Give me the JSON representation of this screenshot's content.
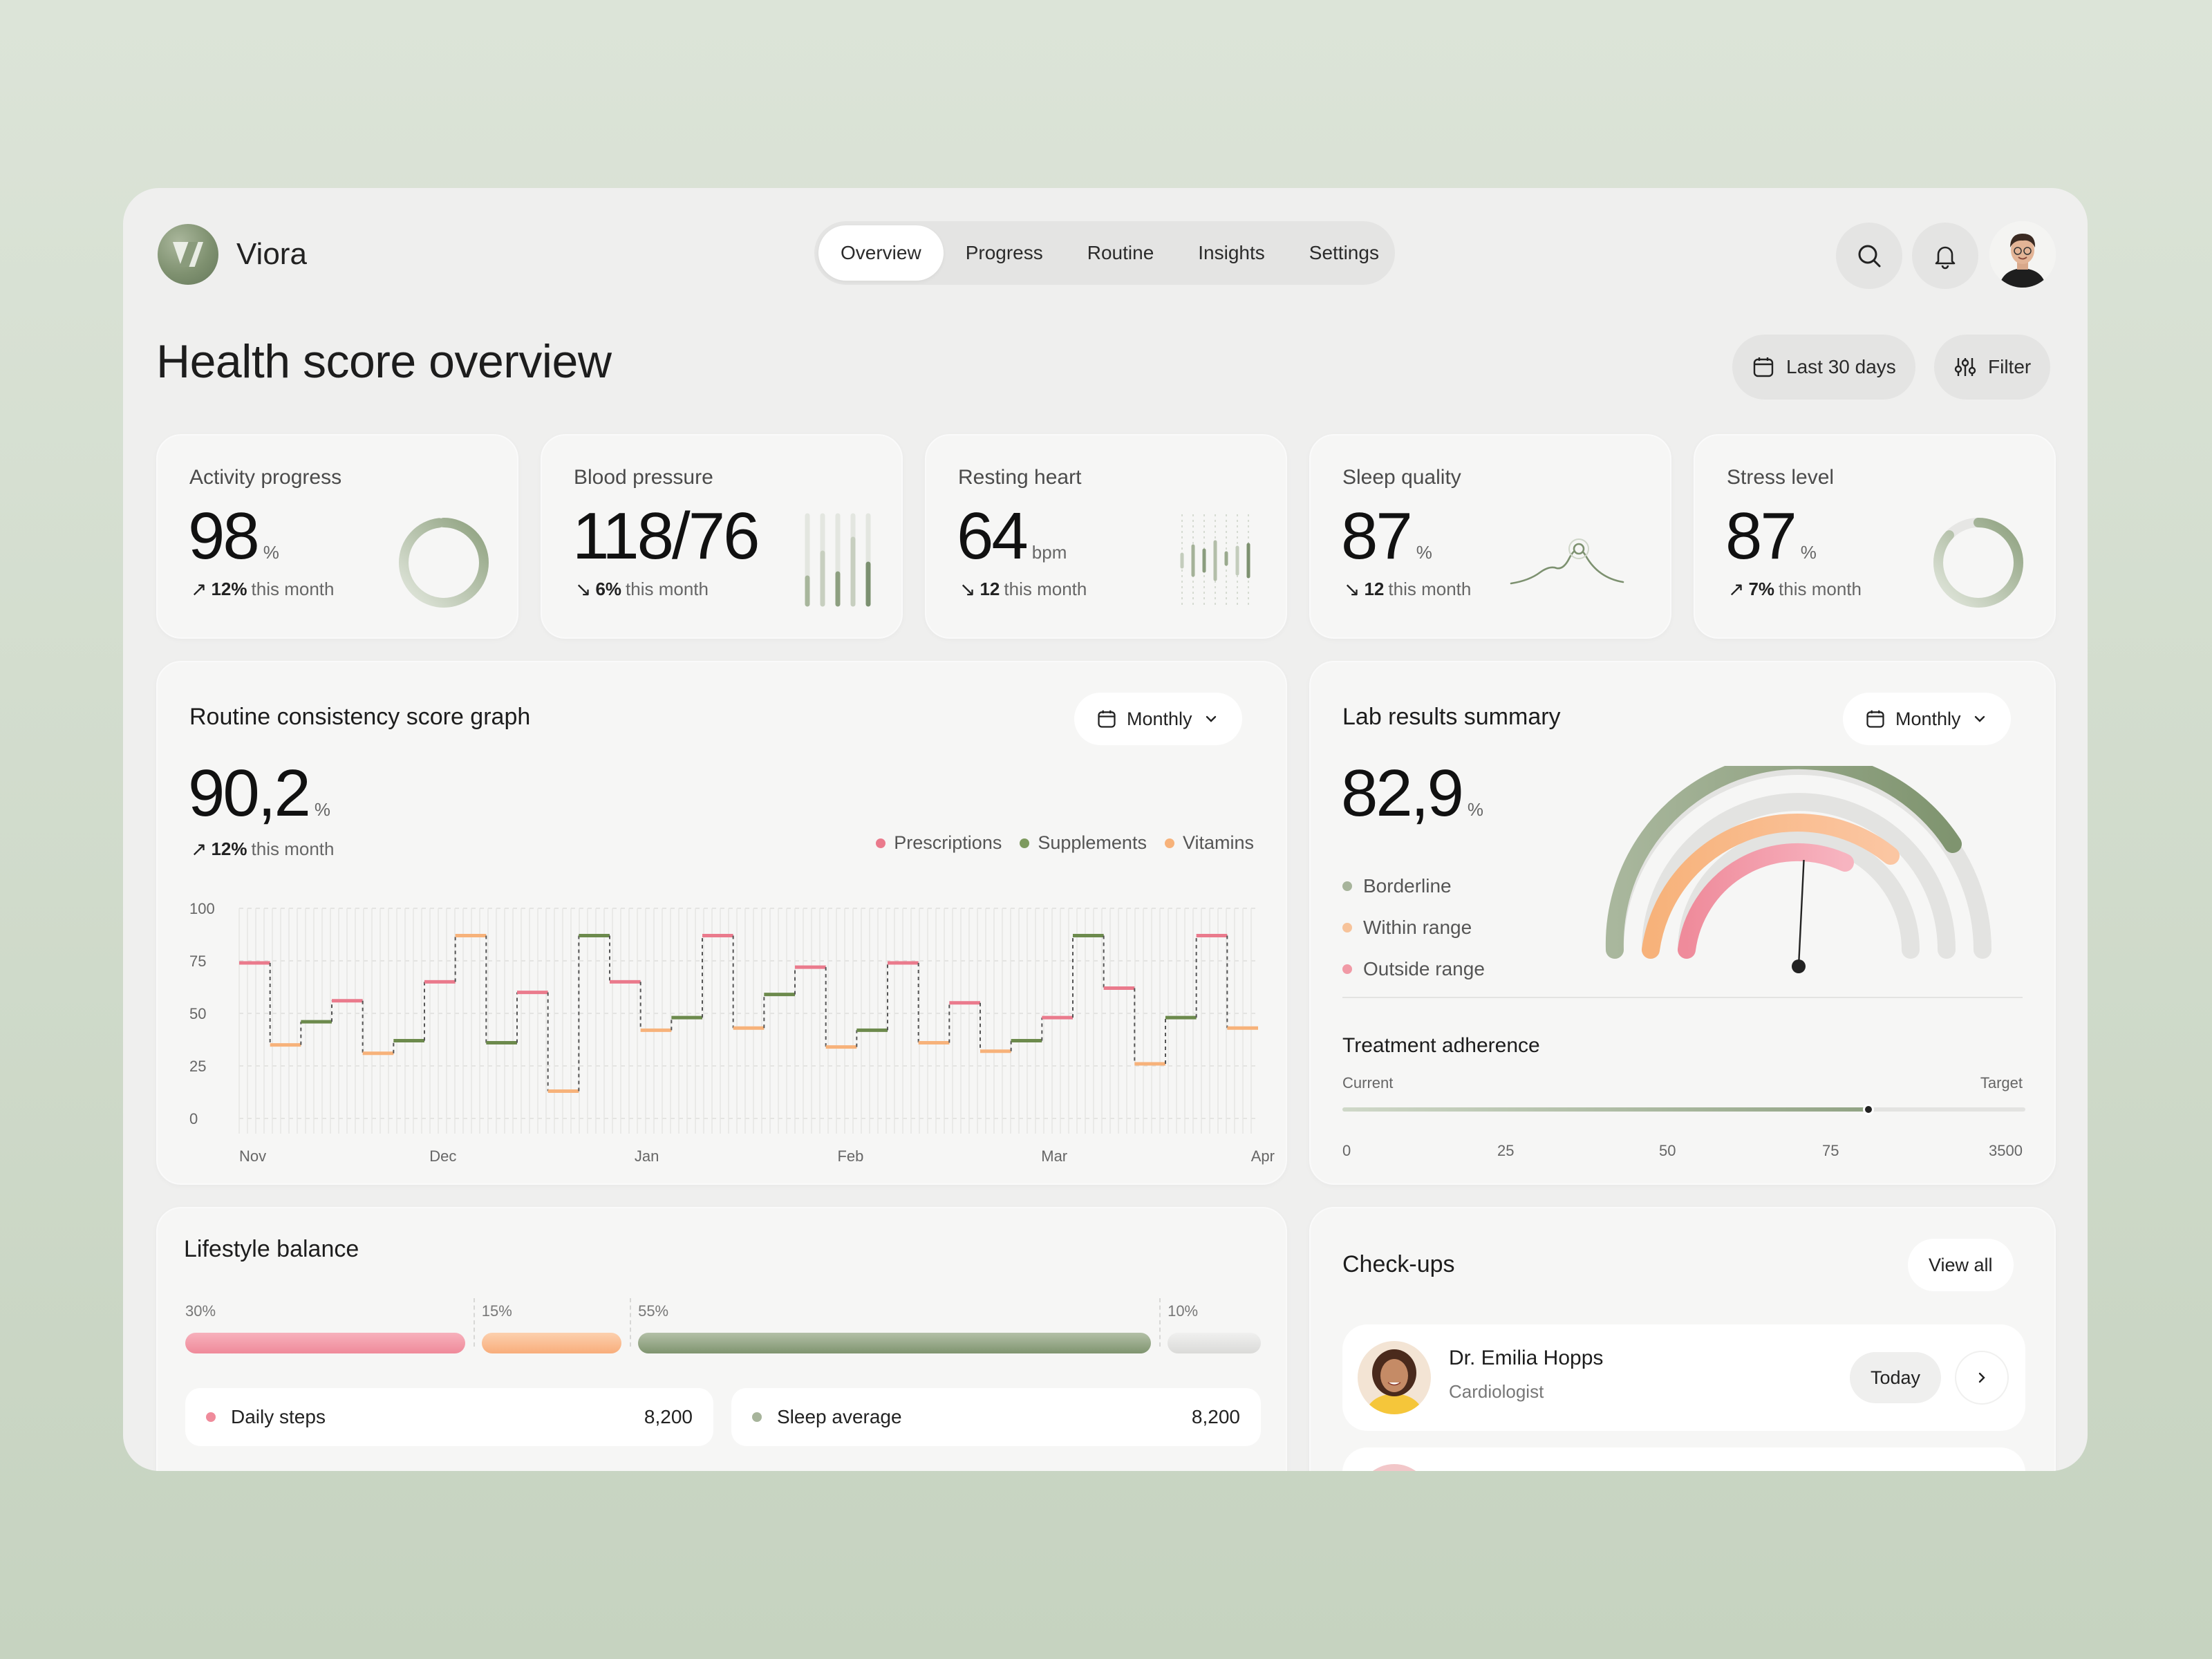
{
  "app": {
    "name": "Viora"
  },
  "nav": {
    "tabs": [
      "Overview",
      "Progress",
      "Routine",
      "Insights",
      "Settings"
    ],
    "active": "Overview"
  },
  "header": {
    "title": "Health score overview",
    "date_range": "Last 30 days",
    "filter_label": "Filter"
  },
  "colors": {
    "accent_green": "#7d9270",
    "pink": "#ea7a8c",
    "orange": "#f7b27a",
    "olive": "#6c8a4c"
  },
  "stats": [
    {
      "label": "Activity progress",
      "value": "98",
      "unit": "%",
      "arrow": "↗",
      "change": "12%",
      "change_text": "this month",
      "progress": 0.98
    },
    {
      "label": "Blood pressure",
      "value": "118/76",
      "unit": "",
      "arrow": "↘",
      "change": "6%",
      "change_text": "this month"
    },
    {
      "label": "Resting heart",
      "value": "64",
      "unit": "bpm",
      "arrow": "↘",
      "change": "12",
      "change_text": "this month"
    },
    {
      "label": "Sleep quality",
      "value": "87",
      "unit": "%",
      "arrow": "↘",
      "change": "12",
      "change_text": "this month"
    },
    {
      "label": "Stress level",
      "value": "87",
      "unit": "%",
      "arrow": "↗",
      "change": "7%",
      "change_text": "this month",
      "progress": 0.87
    }
  ],
  "routine": {
    "title": "Routine consistency score graph",
    "period": "Monthly",
    "value": "90,2",
    "unit": "%",
    "arrow": "↗",
    "change": "12%",
    "change_text": "this month",
    "legend": [
      "Prescriptions",
      "Supplements",
      "Vitamins"
    ]
  },
  "chart_data": {
    "type": "line",
    "xlabel": "",
    "ylabel": "",
    "ylim": [
      0,
      100
    ],
    "yticks": [
      100,
      75,
      50,
      25,
      0
    ],
    "xticks": [
      "Nov",
      "Dec",
      "Jan",
      "Feb",
      "Mar",
      "Apr"
    ],
    "series_names": [
      "Prescriptions",
      "Supplements",
      "Vitamins"
    ],
    "steps": [
      {
        "v": 74,
        "s": 0
      },
      {
        "v": 35,
        "s": 2
      },
      {
        "v": 46,
        "s": 1
      },
      {
        "v": 56,
        "s": 0
      },
      {
        "v": 31,
        "s": 2
      },
      {
        "v": 37,
        "s": 1
      },
      {
        "v": 65,
        "s": 0
      },
      {
        "v": 87,
        "s": 2
      },
      {
        "v": 36,
        "s": 1
      },
      {
        "v": 60,
        "s": 0
      },
      {
        "v": 13,
        "s": 2
      },
      {
        "v": 87,
        "s": 1
      },
      {
        "v": 65,
        "s": 0
      },
      {
        "v": 42,
        "s": 2
      },
      {
        "v": 48,
        "s": 1
      },
      {
        "v": 87,
        "s": 0
      },
      {
        "v": 43,
        "s": 2
      },
      {
        "v": 59,
        "s": 1
      },
      {
        "v": 72,
        "s": 0
      },
      {
        "v": 34,
        "s": 2
      },
      {
        "v": 42,
        "s": 1
      },
      {
        "v": 74,
        "s": 0
      },
      {
        "v": 36,
        "s": 2
      },
      {
        "v": 55,
        "s": 0
      },
      {
        "v": 32,
        "s": 2
      },
      {
        "v": 37,
        "s": 1
      },
      {
        "v": 48,
        "s": 0
      },
      {
        "v": 87,
        "s": 1
      },
      {
        "v": 62,
        "s": 0
      },
      {
        "v": 26,
        "s": 2
      },
      {
        "v": 48,
        "s": 1
      },
      {
        "v": 87,
        "s": 0
      },
      {
        "v": 43,
        "s": 2
      }
    ]
  },
  "lab": {
    "title": "Lab results summary",
    "period": "Monthly",
    "value": "82,9",
    "unit": "%",
    "legend": [
      "Borderline",
      "Within range",
      "Outside range"
    ],
    "gauge_needle": 0.62
  },
  "adherence": {
    "title": "Treatment adherence",
    "current_label": "Current",
    "target_label": "Target",
    "ticks": [
      "0",
      "25",
      "50",
      "75",
      "3500"
    ],
    "progress": 0.77
  },
  "lifestyle": {
    "title": "Lifestyle balance",
    "segments": [
      {
        "label": "30%",
        "share": 30
      },
      {
        "label": "15%",
        "share": 15
      },
      {
        "label": "55%",
        "share": 55
      },
      {
        "label": "10%",
        "share": 10
      }
    ],
    "rows": [
      {
        "label": "Daily steps",
        "value": "8,200"
      },
      {
        "label": "Sleep average",
        "value": "8,200"
      }
    ]
  },
  "checkups": {
    "title": "Check-ups",
    "view_all": "View all",
    "doctors": [
      {
        "name": "Dr. Emilia Hopps",
        "role": "Cardiologist",
        "when": "Today"
      }
    ]
  }
}
